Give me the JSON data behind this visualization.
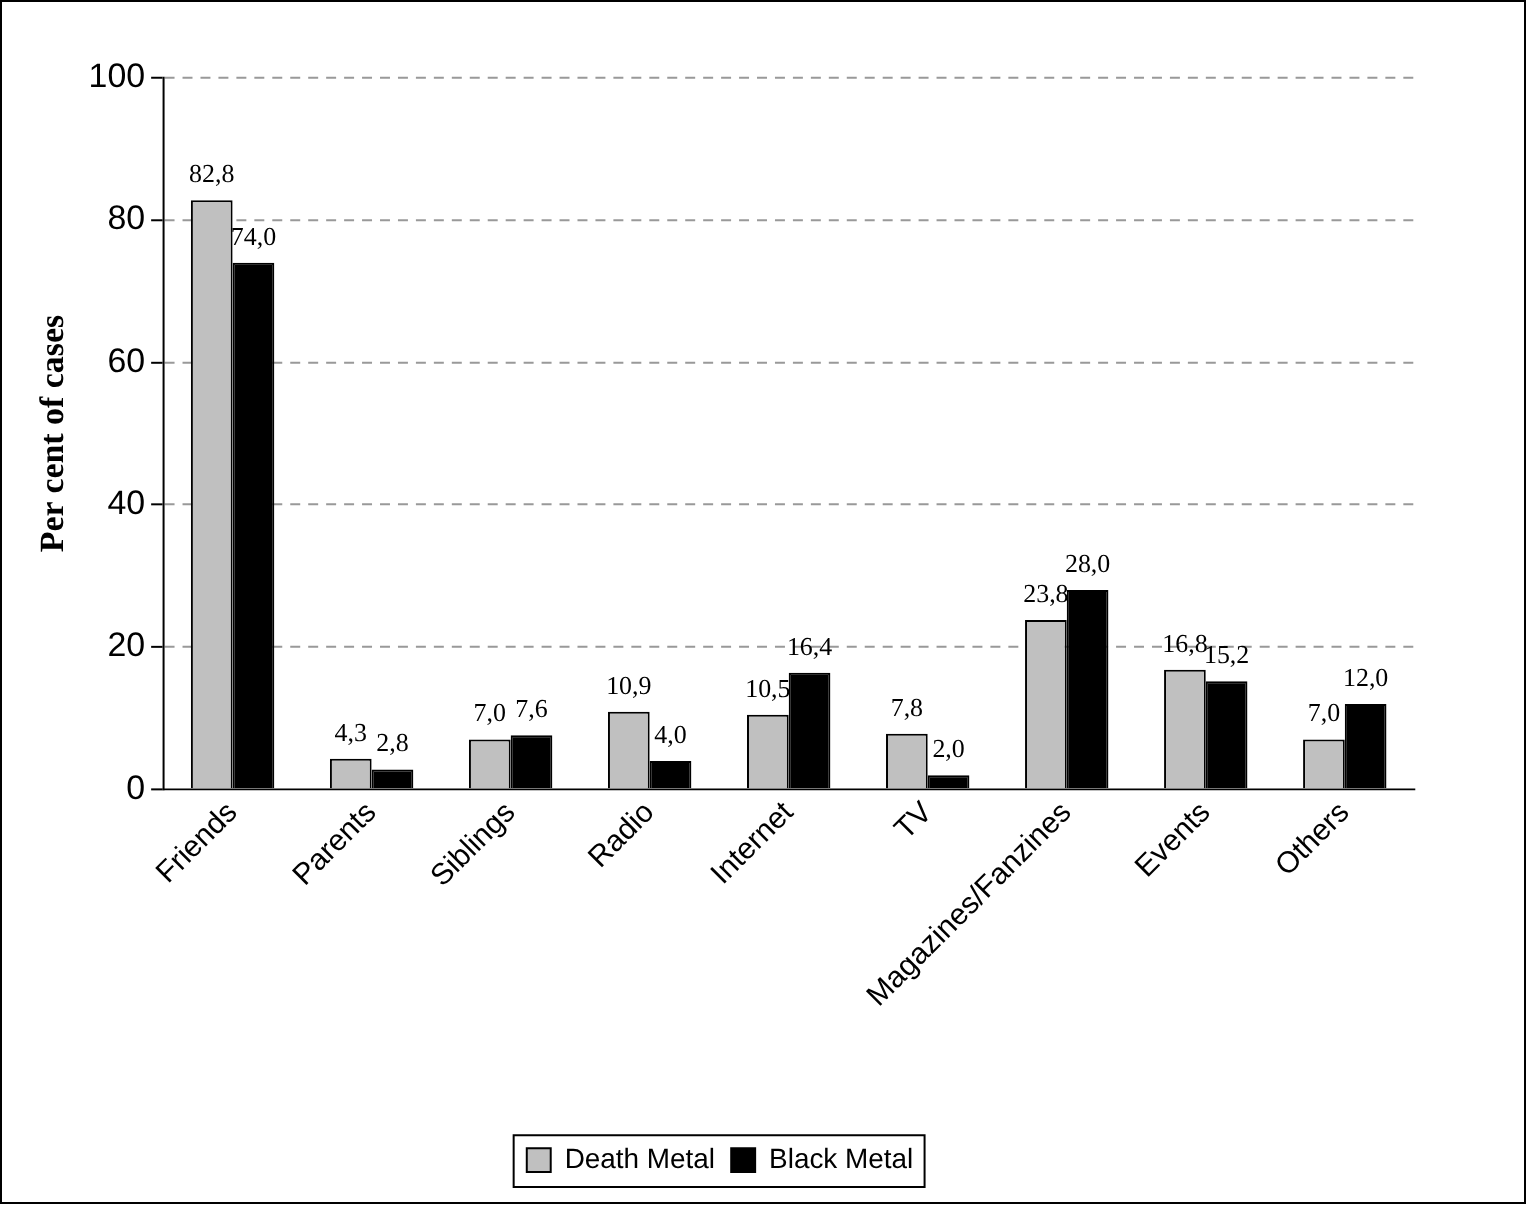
{
  "chart_data": {
    "type": "bar",
    "ylabel": "Per cent of cases",
    "categories": [
      "Friends",
      "Parents",
      "Siblings",
      "Radio",
      "Internet",
      "TV",
      "Magazines/Fanzines",
      "Events",
      "Others"
    ],
    "series": [
      {
        "name": "Death Metal",
        "color": "#c0c0c0",
        "values": [
          82.8,
          4.3,
          7.0,
          10.9,
          10.5,
          7.8,
          23.8,
          16.8,
          7.0
        ],
        "value_labels": [
          "82,8",
          "4,3",
          "7,0",
          "10,9",
          "10,5",
          "7,8",
          "23,8",
          "16,8",
          "7,0"
        ]
      },
      {
        "name": "Black Metal",
        "color": "#000000",
        "values": [
          74.0,
          2.8,
          7.6,
          4.0,
          16.4,
          2.0,
          28.0,
          15.2,
          12.0
        ],
        "value_labels": [
          "74,0",
          "2,8",
          "7,6",
          "4,0",
          "16,4",
          "2,0",
          "28,0",
          "15,2",
          "12,0"
        ]
      }
    ],
    "ylim": [
      0,
      100
    ],
    "yticks": [
      0,
      20,
      40,
      60,
      80,
      100
    ],
    "grid": "y",
    "legend": "bottom"
  }
}
